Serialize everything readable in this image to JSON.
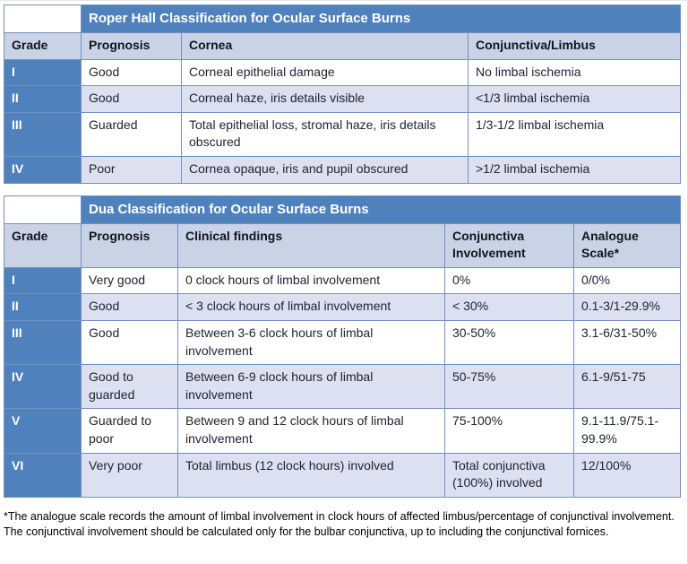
{
  "colors": {
    "title_bar": "#4f81bd",
    "title_text": "#ffffff",
    "header_bg": "#c9d3e5",
    "grade_bg": "#4f81bd",
    "grade_text": "#ffffff",
    "row_bg": "#ffffff",
    "row_alt_bg": "#dce0f0",
    "border": "#7391bd",
    "text": "#1b2430"
  },
  "tables": [
    {
      "id": "roper-hall",
      "title": "Roper Hall Classification for Ocular Surface Burns",
      "columns": [
        "Grade",
        "Prognosis",
        "Cornea",
        "Conjunctiva/Limbus"
      ],
      "rows": [
        [
          "I",
          "Good",
          "Corneal epithelial damage",
          "No limbal ischemia"
        ],
        [
          "II",
          "Good",
          "Corneal haze, iris details visible",
          "<1/3 limbal ischemia"
        ],
        [
          "III",
          "Guarded",
          "Total epithelial loss, stromal haze, iris details obscured",
          "1/3-1/2 limbal ischemia"
        ],
        [
          "IV",
          "Poor",
          "Cornea opaque, iris and pupil obscured",
          ">1/2 limbal ischemia"
        ]
      ]
    },
    {
      "id": "dua",
      "title": "Dua Classification for Ocular Surface Burns",
      "columns": [
        "Grade",
        "Prognosis",
        "Clinical findings",
        "Conjunctiva Involvement",
        "Analogue Scale*"
      ],
      "rows": [
        [
          "I",
          "Very good",
          "0 clock hours of limbal involvement",
          "0%",
          "0/0%"
        ],
        [
          "II",
          "Good",
          "< 3 clock hours of limbal involvement",
          "< 30%",
          "0.1-3/1-29.9%"
        ],
        [
          "III",
          "Good",
          "Between 3-6 clock hours of limbal involvement",
          "30-50%",
          "3.1-6/31-50%"
        ],
        [
          "IV",
          "Good to guarded",
          "Between 6-9 clock hours of limbal involvement",
          "50-75%",
          "6.1-9/51-75"
        ],
        [
          "V",
          "Guarded to poor",
          "Between 9 and 12 clock hours of limbal involvement",
          "75-100%",
          "9.1-11.9/75.1-99.9%"
        ],
        [
          "VI",
          "Very poor",
          "Total limbus (12 clock hours) involved",
          "Total conjunctiva (100%) involved",
          "12/100%"
        ]
      ]
    }
  ],
  "footnote": "*The analogue scale records the amount of limbal involvement in clock hours of affected limbus/percentage of conjunctival involvement. The conjunctival involvement should be calculated only for the bulbar conjunctiva, up to including the conjunctival fornices."
}
